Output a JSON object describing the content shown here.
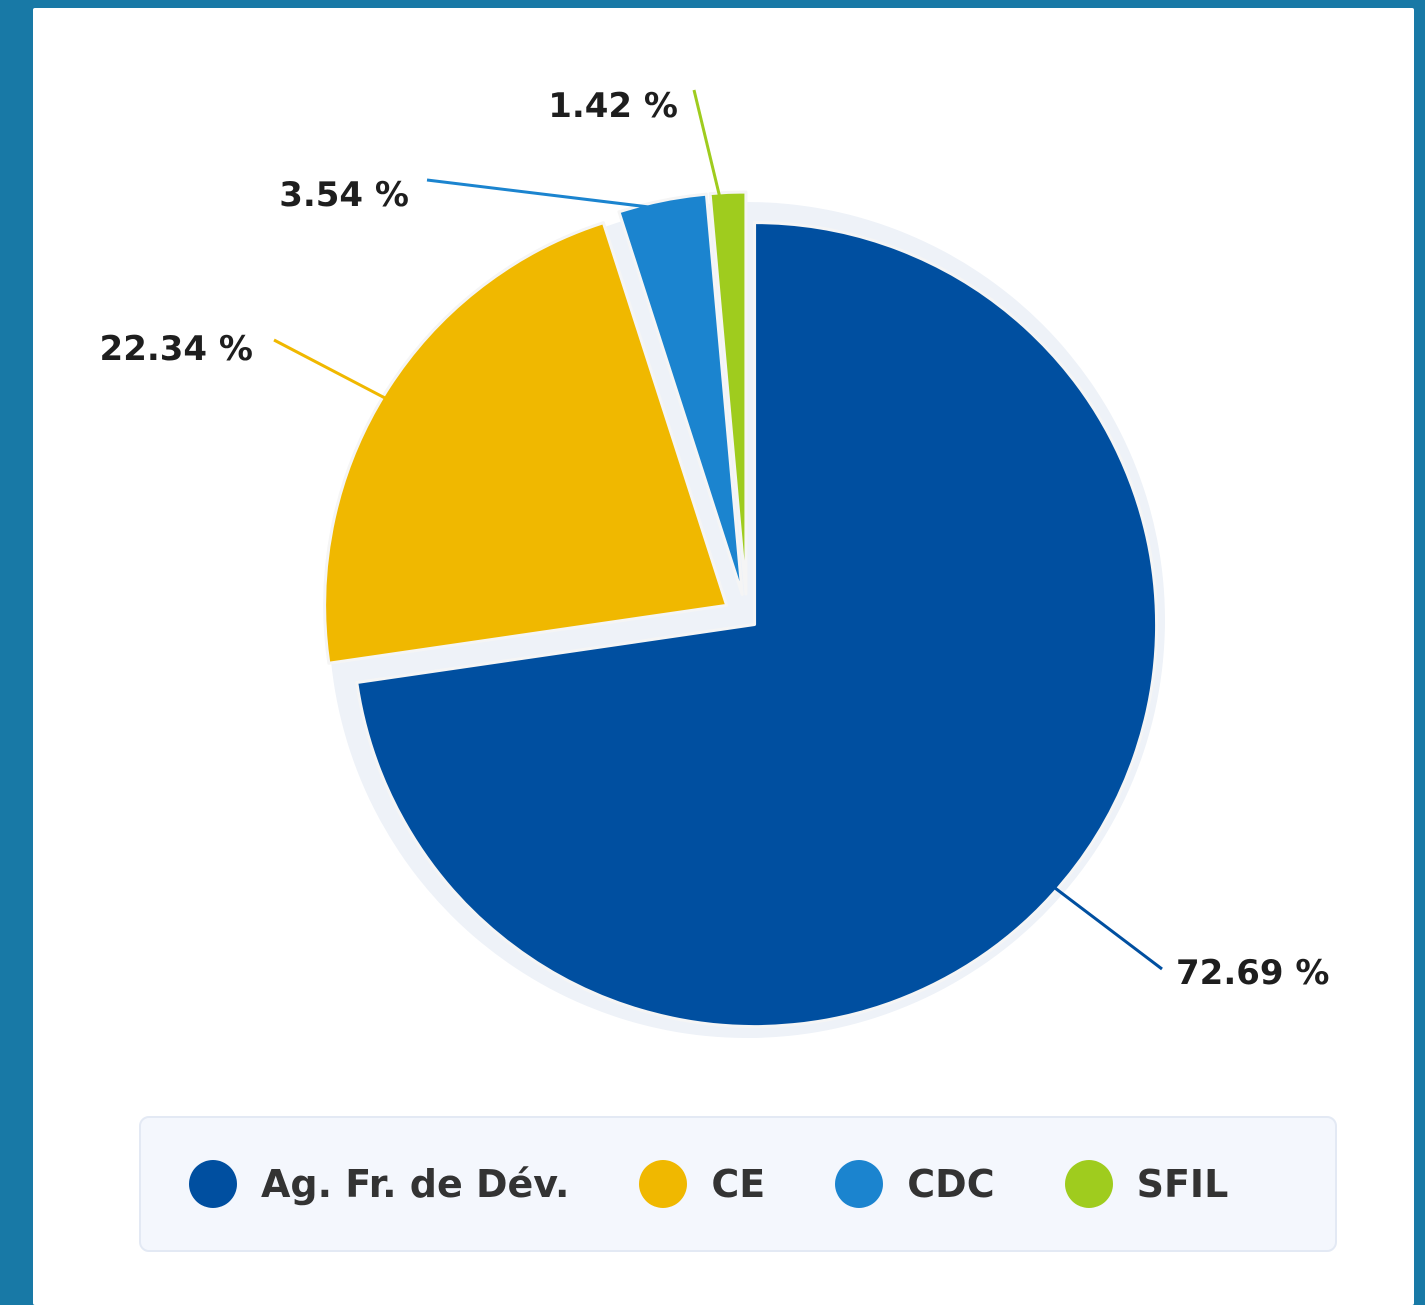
{
  "colors": {
    "background": "#1879a6",
    "card": "#ffffff",
    "slice_border": "#f5f5f5"
  },
  "chart_data": {
    "type": "pie",
    "title": "",
    "slices": [
      {
        "name": "Ag. Fr. de Dév.",
        "value": 72.69,
        "label": "72.69 %",
        "color": "#004fa0"
      },
      {
        "name": "CE",
        "value": 22.34,
        "label": "22.34 %",
        "color": "#f0b800"
      },
      {
        "name": "CDC",
        "value": 3.54,
        "label": "3.54 %",
        "color": "#1b84cf"
      },
      {
        "name": "SFIL",
        "value": 1.42,
        "label": "1.42 %",
        "color": "#9fcc1e"
      }
    ],
    "start_angle": "12 o'clock",
    "direction": "clockwise",
    "legend": {
      "position": "bottom",
      "items": [
        {
          "label": "Ag. Fr. de Dév.",
          "color": "#004fa0"
        },
        {
          "label": "CE",
          "color": "#f0b800"
        },
        {
          "label": "CDC",
          "color": "#1b84cf"
        },
        {
          "label": "SFIL",
          "color": "#9fcc1e"
        }
      ]
    }
  }
}
